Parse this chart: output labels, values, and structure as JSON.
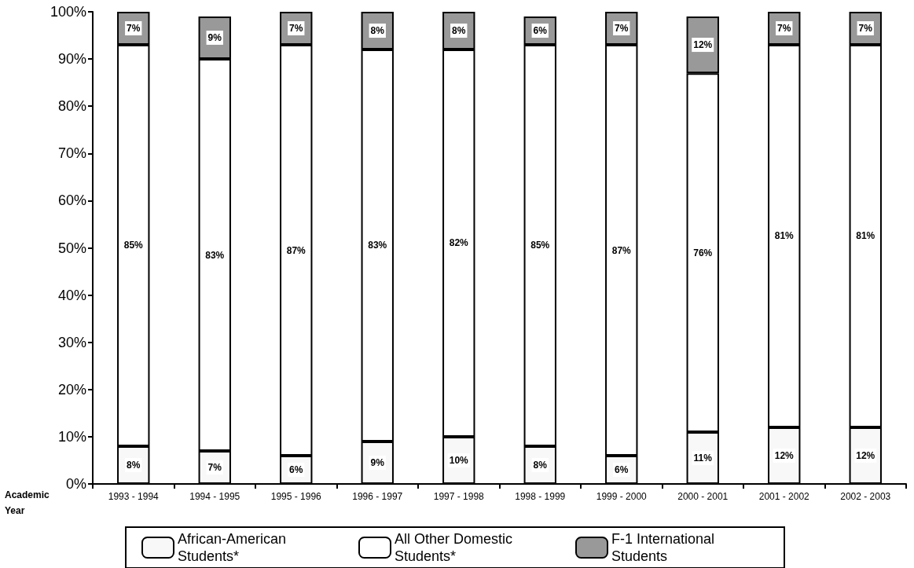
{
  "chart_data": {
    "type": "bar",
    "stacked": true,
    "xlabel": "Academic Year",
    "categories": [
      "1993 - 1994",
      "1994 - 1995",
      "1995 - 1996",
      "1996 - 1997",
      "1997 - 1998",
      "1998 - 1999",
      "1999 - 2000",
      "2000 - 2001",
      "2001 - 2002",
      "2002 - 2003"
    ],
    "series": [
      {
        "name": "African-American Students*",
        "color": "#f8f8f8",
        "values": [
          8,
          7,
          6,
          9,
          10,
          8,
          6,
          11,
          12,
          12
        ],
        "value_labels": [
          "8%",
          "7%",
          "6%",
          "9%",
          "10%",
          "8%",
          "6%",
          "11%",
          "12%",
          "12%"
        ]
      },
      {
        "name": "All Other Domestic Students*",
        "color": "#ffffff",
        "values": [
          85,
          83,
          87,
          83,
          82,
          85,
          87,
          76,
          81,
          81
        ],
        "value_labels": [
          "85%",
          "83%",
          "87%",
          "83%",
          "82%",
          "85%",
          "87%",
          "76%",
          "81%",
          "81%"
        ]
      },
      {
        "name": "F-1 International Students",
        "color": "#999999",
        "values": [
          7,
          9,
          7,
          8,
          8,
          6,
          7,
          12,
          7,
          7
        ],
        "value_labels": [
          "7%",
          "9%",
          "7%",
          "8%",
          "8%",
          "6%",
          "7%",
          "12%",
          "7%",
          "7%"
        ]
      }
    ],
    "ylim": [
      0,
      100
    ],
    "yticks": [
      {
        "value": 0,
        "label": "0%"
      },
      {
        "value": 10,
        "label": "10%"
      },
      {
        "value": 20,
        "label": "20%"
      },
      {
        "value": 30,
        "label": "30%"
      },
      {
        "value": 40,
        "label": "40%"
      },
      {
        "value": 50,
        "label": "50%"
      },
      {
        "value": 60,
        "label": "60%"
      },
      {
        "value": 70,
        "label": "70%"
      },
      {
        "value": 80,
        "label": "80%"
      },
      {
        "value": 90,
        "label": "90%"
      },
      {
        "value": 100,
        "label": "100%"
      }
    ],
    "grid": false,
    "legend": "bottom"
  }
}
